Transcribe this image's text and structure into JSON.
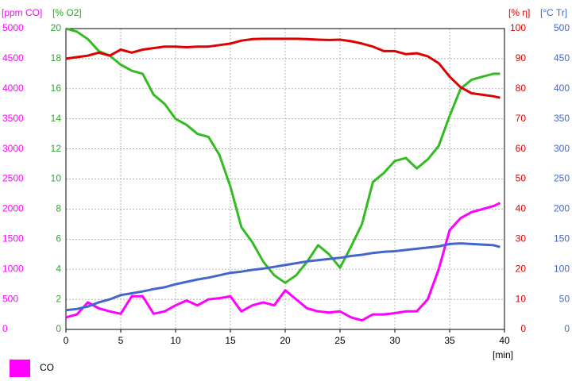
{
  "chart_data": {
    "type": "line",
    "x_label": "[min]",
    "x": [
      0,
      1,
      2,
      3,
      4,
      5,
      6,
      7,
      8,
      9,
      10,
      11,
      12,
      13,
      14,
      15,
      16,
      17,
      18,
      19,
      20,
      21,
      22,
      23,
      24,
      25,
      26,
      27,
      28,
      29,
      30,
      31,
      32,
      33,
      34,
      35,
      36,
      37,
      38,
      39,
      39.6
    ],
    "xlim": [
      0,
      40
    ],
    "xticks": [
      0,
      5,
      10,
      15,
      20,
      25,
      30,
      35,
      40
    ],
    "grid": true,
    "y_axes": [
      {
        "label": "[ppm CO]",
        "color": "#ff00ff",
        "side": "left",
        "lim": [
          0,
          5000
        ],
        "ticks": [
          0,
          500,
          1000,
          1500,
          2000,
          2500,
          3000,
          3500,
          4000,
          4500,
          5000
        ]
      },
      {
        "label": "[% O2]",
        "color": "#22aa22",
        "side": "left",
        "lim": [
          0,
          20
        ],
        "ticks": [
          0,
          2,
          4,
          6,
          8,
          10,
          12,
          14,
          16,
          18,
          20
        ]
      },
      {
        "label": "[% η]",
        "color": "#dd0000",
        "side": "right",
        "lim": [
          0,
          100
        ],
        "ticks": [
          0,
          10,
          20,
          30,
          40,
          50,
          60,
          70,
          80,
          90,
          100
        ]
      },
      {
        "label": "[°C Tr]",
        "color": "#4466cc",
        "side": "right",
        "lim": [
          0,
          500
        ],
        "ticks": [
          0,
          50,
          100,
          150,
          200,
          250,
          300,
          350,
          400,
          450,
          500
        ]
      }
    ],
    "series": [
      {
        "name": "CO",
        "color": "#ff00ff",
        "axis": 0,
        "values": [
          200,
          250,
          450,
          350,
          300,
          260,
          550,
          550,
          260,
          300,
          400,
          480,
          400,
          500,
          520,
          550,
          300,
          400,
          450,
          400,
          650,
          500,
          350,
          300,
          280,
          300,
          200,
          150,
          250,
          250,
          270,
          300,
          300,
          500,
          1000,
          1650,
          1850,
          1950,
          2000,
          2050,
          2100
        ]
      },
      {
        "color": "#33bb22",
        "axis": 1,
        "values": [
          20,
          19.8,
          19.3,
          18.5,
          18.2,
          17.6,
          17.2,
          17.0,
          15.6,
          15.0,
          14.0,
          13.6,
          13.0,
          12.8,
          11.6,
          9.5,
          6.8,
          5.8,
          4.5,
          3.6,
          3.1,
          3.6,
          4.5,
          5.6,
          5.0,
          4.1,
          5.5,
          7.0,
          9.8,
          10.4,
          11.2,
          11.4,
          10.7,
          11.3,
          12.2,
          14.2,
          16.0,
          16.6,
          16.8,
          17.0,
          17.0
        ]
      },
      {
        "color": "#dd0000",
        "axis": 2,
        "values": [
          90,
          90.5,
          91,
          92,
          91,
          93,
          92,
          93,
          93.5,
          94,
          94,
          93.8,
          94,
          94,
          94.5,
          95,
          96,
          96.5,
          96.6,
          96.6,
          96.6,
          96.6,
          96.5,
          96.3,
          96.2,
          96.3,
          95.8,
          95,
          94,
          92.5,
          92.5,
          91.5,
          91.8,
          90.8,
          88.5,
          84,
          80.5,
          78.5,
          78,
          77.5,
          77
        ]
      },
      {
        "color": "#4466cc",
        "axis": 3,
        "values": [
          32,
          34,
          38,
          45,
          50,
          57,
          60,
          63,
          67,
          70,
          75,
          79,
          83,
          86,
          90,
          94,
          96,
          99,
          101,
          104,
          107,
          110,
          113,
          115,
          117,
          119,
          122,
          124,
          127,
          129,
          130,
          132,
          134,
          136,
          138,
          142,
          143,
          142,
          141,
          140,
          137
        ]
      }
    ]
  }
}
